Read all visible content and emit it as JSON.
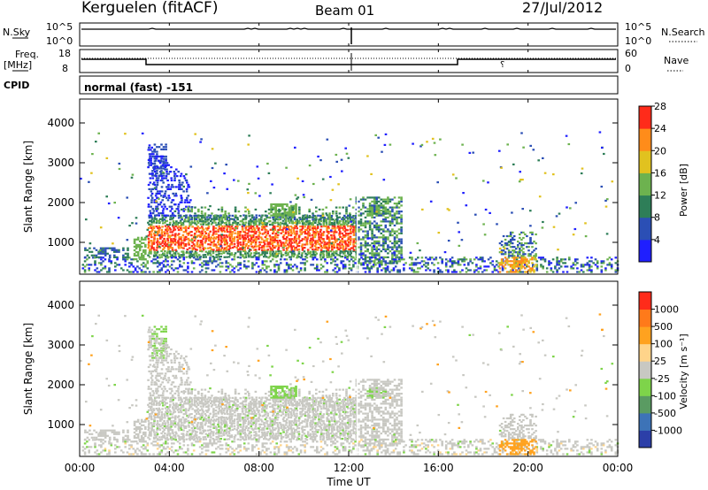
{
  "header": {
    "station": "Kerguelen (fitACF)",
    "beam": "Beam 01",
    "date": "27/Jul/2012"
  },
  "panels": {
    "nsky": {
      "left_label": "N.Sky",
      "left_ticks": [
        "10^5",
        "10^0"
      ],
      "right_ticks": [
        "10^5",
        "10^0"
      ],
      "right_label": "N.Search"
    },
    "freq": {
      "left_label_1": "Freq.",
      "left_label_2": "[MHz]",
      "left_ticks": [
        "18",
        "8"
      ],
      "right_ticks": [
        "60",
        "0"
      ],
      "right_label": "Nave"
    },
    "cpid": {
      "label": "CPID",
      "mode": "normal (fast) -151"
    }
  },
  "chart_data": [
    {
      "type": "heatmap",
      "name": "power",
      "ylabel": "Slant Range [km]",
      "yticks": [
        "1000",
        "2000",
        "3000",
        "4000"
      ],
      "ylim": [
        200,
        4600
      ],
      "colorbar_label": "Power [dB]",
      "colorbar_ticks": [
        "4",
        "8",
        "12",
        "16",
        "20",
        "24",
        "28"
      ],
      "colors": [
        "#1f1fff",
        "#2b4fb5",
        "#2e7e58",
        "#6db24f",
        "#e1c21f",
        "#ff8c1a",
        "#ff2b1a"
      ]
    },
    {
      "type": "heatmap",
      "name": "velocity",
      "ylabel": "Slant Range [km]",
      "yticks": [
        "1000",
        "2000",
        "3000",
        "4000"
      ],
      "ylim": [
        200,
        4600
      ],
      "colorbar_label": "Velocity [m s⁻¹]",
      "colorbar_ticks": [
        "1000",
        "500",
        "100",
        "25",
        "-25",
        "-100",
        "-500",
        "-1000"
      ],
      "colors": [
        "#2c3fa8",
        "#3d73b7",
        "#5a9b62",
        "#7ed44a",
        "#c8c8c2",
        "#ffd48a",
        "#ffa21f",
        "#ff7a1a",
        "#ff2b1a"
      ]
    }
  ],
  "xaxis": {
    "label": "Time UT",
    "ticks": [
      "00:00",
      "04:00",
      "08:00",
      "12:00",
      "16:00",
      "20:00",
      "00:00"
    ]
  }
}
